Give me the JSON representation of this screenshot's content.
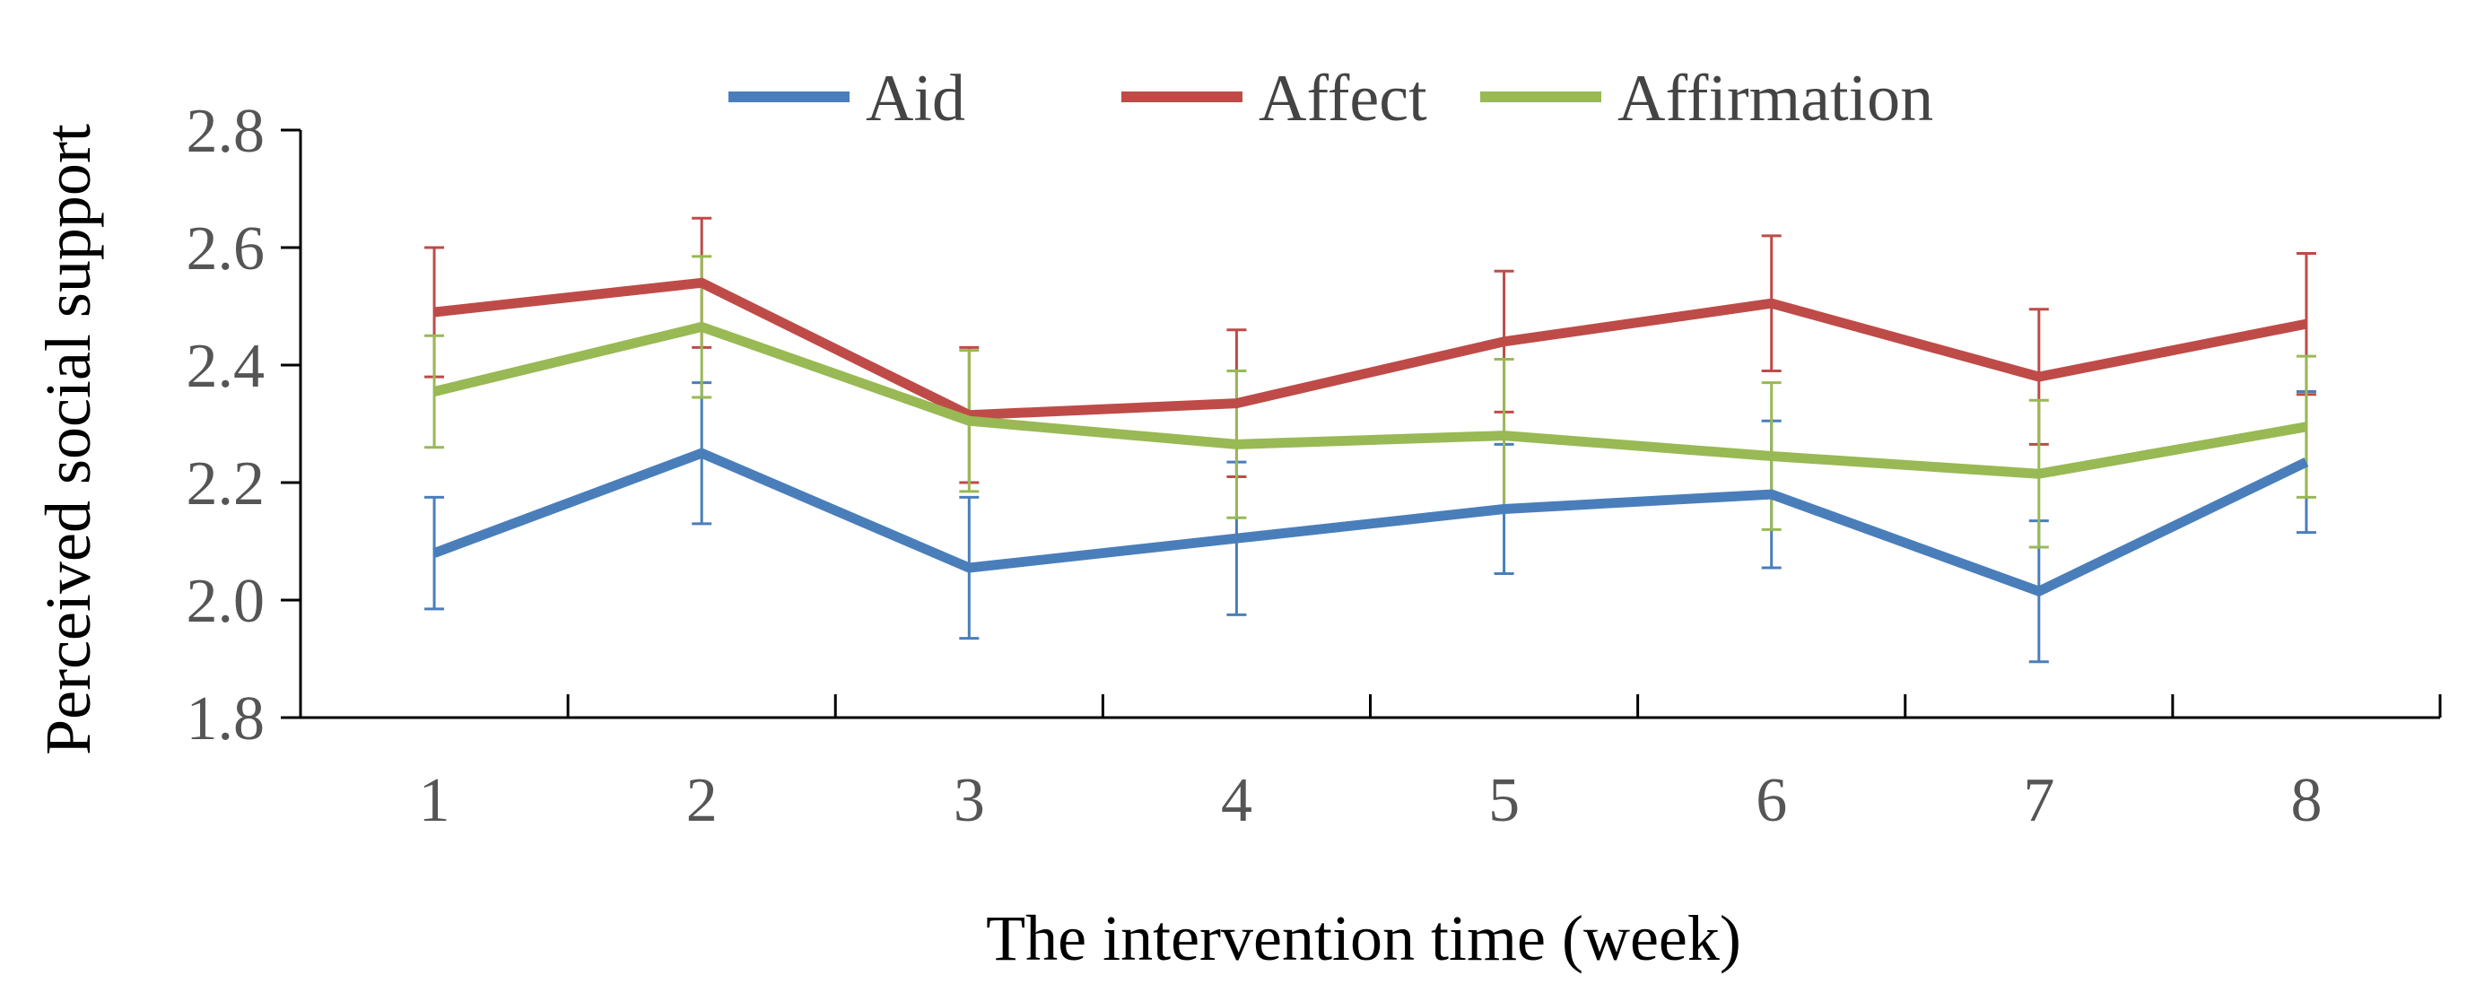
{
  "chart_data": {
    "type": "line",
    "title": "",
    "xlabel": "The intervention time (week)",
    "ylabel": "Perceived social support",
    "x": [
      1,
      2,
      3,
      4,
      5,
      6,
      7,
      8
    ],
    "x_tick_labels": [
      "1",
      "2",
      "3",
      "4",
      "5",
      "6",
      "7",
      "8"
    ],
    "ylim": [
      1.8,
      2.8
    ],
    "y_ticks": [
      1.8,
      2.0,
      2.2,
      2.4,
      2.6,
      2.8
    ],
    "y_tick_labels": [
      "1.8",
      "2.0",
      "2.2",
      "2.4",
      "2.6",
      "2.8"
    ],
    "grid": false,
    "legend_position": "top",
    "series": [
      {
        "name": "Aid",
        "color": "#4a7ebb",
        "values": [
          2.08,
          2.25,
          2.055,
          2.105,
          2.155,
          2.18,
          2.015,
          2.235
        ],
        "error": [
          0.095,
          0.12,
          0.12,
          0.13,
          0.11,
          0.125,
          0.12,
          0.12
        ]
      },
      {
        "name": "Affect",
        "color": "#be4b48",
        "values": [
          2.49,
          2.54,
          2.315,
          2.335,
          2.44,
          2.505,
          2.38,
          2.47
        ],
        "error": [
          0.11,
          0.11,
          0.115,
          0.125,
          0.12,
          0.115,
          0.115,
          0.12
        ]
      },
      {
        "name": "Affirmation",
        "color": "#98b954",
        "values": [
          2.355,
          2.465,
          2.305,
          2.265,
          2.28,
          2.245,
          2.215,
          2.295
        ],
        "error": [
          0.095,
          0.12,
          0.12,
          0.125,
          0.13,
          0.125,
          0.125,
          0.12
        ]
      }
    ]
  }
}
